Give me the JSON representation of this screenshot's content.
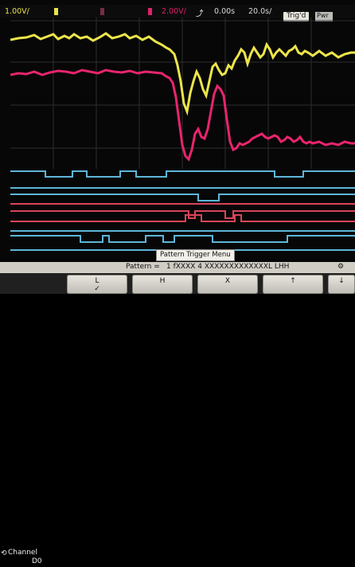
{
  "status": {
    "ch1_scale": "1.00V/",
    "ch2_scale": "2.00V/",
    "delay": "0.00s",
    "timebase": "20.0s/",
    "trig_state": "Trig'd",
    "power": "Pwr",
    "trigger_icon": "trigger-edge-icon",
    "ch1_color": "#e8e24a",
    "ch2_color": "#e0206a",
    "chip_color": "#7a2a44"
  },
  "colors": {
    "ch1": "#ece54a",
    "ch2": "#e8246e",
    "digital_blue": "#5fb5d8",
    "digital_red": "#d8455a",
    "grid": "#3a3a3a"
  },
  "tooltip": "Pattern Trigger Menu",
  "pattern_bar": {
    "label": "Pattern =",
    "value": "1 fXXXX 4 XXXXXXXXXXXXXL LHH",
    "icon": "settings-icon"
  },
  "softkeys": {
    "channel_label": "Channel",
    "channel_value": "D0",
    "channel_icon": "rotate-knob-icon",
    "keys": [
      {
        "label": "L",
        "sub": "✓"
      },
      {
        "label": "H",
        "sub": ""
      },
      {
        "label": "X",
        "sub": ""
      },
      {
        "label": "↑",
        "sub": ""
      },
      {
        "label": "↓",
        "sub": ""
      }
    ]
  }
}
